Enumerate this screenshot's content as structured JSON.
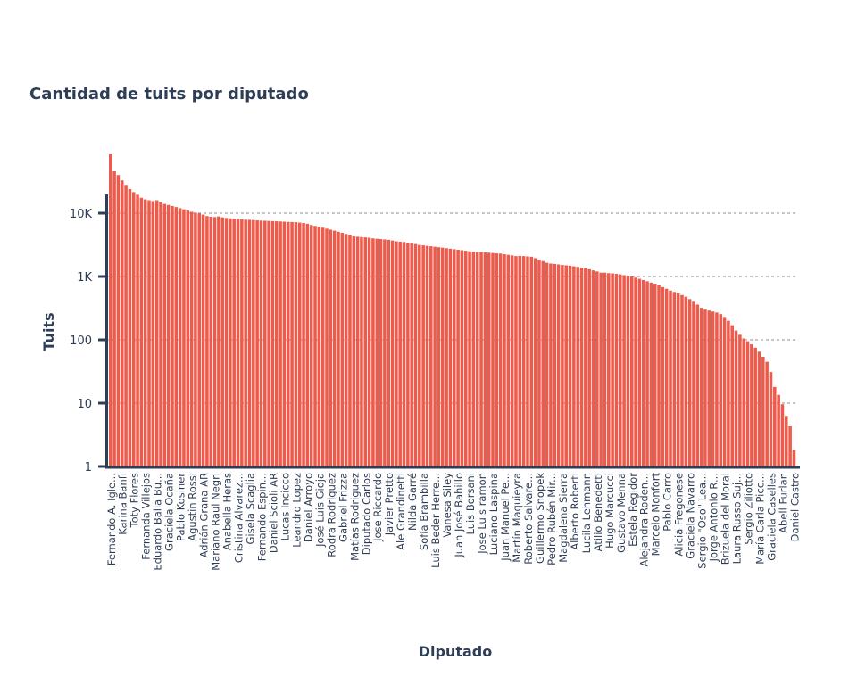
{
  "chart_data": {
    "type": "bar",
    "title": "Cantidad de tuits por diputado",
    "xlabel": "Diputado",
    "ylabel": "Tuits",
    "yscale": "log",
    "ylim": [
      1,
      100000
    ],
    "yticks": [
      1,
      10,
      100,
      1000,
      10000
    ],
    "ytick_labels": [
      "1",
      "10",
      "100",
      "1K",
      "10K"
    ],
    "grid": "horizontal dotted",
    "bar_color": "#ec5b4b",
    "label_every": 3,
    "tick_labels": [
      "Fernando A. Igle...",
      "Karina Banfi",
      "Toty Flores",
      "Fernanda Villejos",
      "Eduardo Balia Bu...",
      "Graciela Ocaña",
      "Pablo Kosiner",
      "Agustin Rossi",
      "Adrián Grana AR",
      "Mariano Raul Negri",
      "Anabella Heras",
      "Cristina Alvarez...",
      "Gisela Scaglia",
      "Fernando Espin...",
      "Daniel Scioli AR",
      "Lucas Incicco",
      "Leandro Lopez",
      "Daniel Arroyo",
      "José Luis Gioja",
      "Rodra Rodriguez",
      "Gabriel Frizza",
      "Matías Rodriguez",
      "Diputado Carlos",
      "Jose Riccardo",
      "Javier Pretto",
      "Ale Grandinetti",
      "Nilda Garré",
      "Sofía Brambilla",
      "Luis Beder Herre...",
      "Vanesa Siley",
      "Juan José Bahillo",
      "Luis Borsani",
      "Jose Luis ramon",
      "Luciano Laspina",
      "Juan Manuel Pe...",
      "Martín Maquieyra",
      "Roberto Salvare...",
      "Guillermo Snopek",
      "Pedro Rubén Mir...",
      "Magdalena Sierra",
      "Alberto Roberti",
      "Lucila Lehmann",
      "Atilio Benedetti",
      "Hugo Marcucci",
      "Gustavo Menna",
      "Estela Regidor",
      "Alejandra Roden...",
      "Marcelo Monfort",
      "Pablo Carro",
      "Alicia Fregonese",
      "Graciela Navarro",
      "Sergio \"Oso\" Lea...",
      "Jorge Antonio R...",
      "Brizuela del Moral",
      "Laura Russo Suj...",
      "Sergio Ziliotto",
      "María Carla Picc...",
      "Graciela Caselles",
      "Abell Furlan",
      "Daniel Castro"
    ],
    "values": [
      85000,
      46000,
      40000,
      33000,
      28000,
      24000,
      21500,
      19500,
      17500,
      16500,
      16000,
      15500,
      16000,
      14800,
      14000,
      13500,
      13000,
      12500,
      12000,
      11500,
      11000,
      10500,
      10200,
      9900,
      9500,
      9000,
      8800,
      8700,
      8900,
      8600,
      8400,
      8300,
      8200,
      8100,
      8000,
      7900,
      7850,
      7800,
      7700,
      7650,
      7600,
      7550,
      7500,
      7450,
      7400,
      7350,
      7300,
      7250,
      7200,
      7100,
      7000,
      6800,
      6500,
      6300,
      6100,
      5900,
      5700,
      5500,
      5300,
      5100,
      4900,
      4700,
      4500,
      4300,
      4250,
      4200,
      4150,
      4100,
      4000,
      3950,
      3900,
      3850,
      3800,
      3700,
      3600,
      3550,
      3500,
      3400,
      3350,
      3250,
      3150,
      3100,
      3050,
      3000,
      2950,
      2900,
      2850,
      2800,
      2750,
      2700,
      2650,
      2600,
      2550,
      2500,
      2480,
      2450,
      2420,
      2400,
      2380,
      2350,
      2320,
      2300,
      2250,
      2200,
      2150,
      2100,
      2120,
      2100,
      2080,
      2050,
      1950,
      1850,
      1750,
      1650,
      1600,
      1580,
      1550,
      1520,
      1500,
      1480,
      1450,
      1420,
      1380,
      1350,
      1300,
      1250,
      1200,
      1150,
      1150,
      1130,
      1120,
      1100,
      1080,
      1050,
      1020,
      1000,
      960,
      920,
      880,
      840,
      800,
      770,
      730,
      680,
      640,
      600,
      570,
      540,
      510,
      480,
      440,
      400,
      360,
      320,
      300,
      290,
      280,
      270,
      255,
      230,
      200,
      170,
      140,
      120,
      105,
      95,
      85,
      75,
      65,
      54,
      45,
      31,
      18,
      13.5,
      9.6,
      6.3,
      4.3,
      1.8
    ]
  }
}
